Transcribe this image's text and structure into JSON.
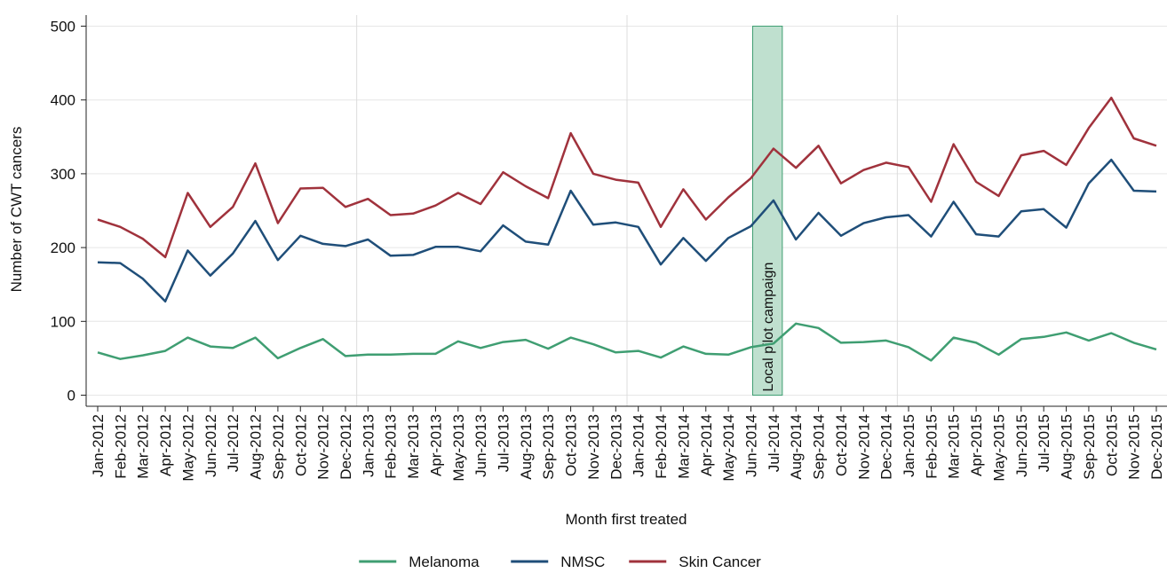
{
  "chart_data": {
    "type": "line",
    "x_label": "Month first treated",
    "y_label": "Number of CWT cancers",
    "categories": [
      "Jan-2012",
      "Feb-2012",
      "Mar-2012",
      "Apr-2012",
      "May-2012",
      "Jun-2012",
      "Jul-2012",
      "Aug-2012",
      "Sep-2012",
      "Oct-2012",
      "Nov-2012",
      "Dec-2012",
      "Jan-2013",
      "Feb-2013",
      "Mar-2013",
      "Apr-2013",
      "May-2013",
      "Jun-2013",
      "Jul-2013",
      "Aug-2013",
      "Sep-2013",
      "Oct-2013",
      "Nov-2013",
      "Dec-2013",
      "Jan-2014",
      "Feb-2014",
      "Mar-2014",
      "Apr-2014",
      "May-2014",
      "Jun-2014",
      "Jul-2014",
      "Aug-2014",
      "Sep-2014",
      "Oct-2014",
      "Nov-2014",
      "Dec-2014",
      "Jan-2015",
      "Feb-2015",
      "Mar-2015",
      "Apr-2015",
      "May-2015",
      "Jun-2015",
      "Jul-2015",
      "Aug-2015",
      "Sep-2015",
      "Oct-2015",
      "Nov-2015",
      "Dec-2015"
    ],
    "series": [
      {
        "name": "Melanoma",
        "color": "#3f9e72",
        "values": [
          58,
          49,
          54,
          60,
          78,
          66,
          64,
          78,
          50,
          64,
          76,
          53,
          55,
          55,
          56,
          56,
          73,
          64,
          72,
          75,
          63,
          78,
          69,
          58,
          60,
          51,
          66,
          56,
          55,
          65,
          70,
          97,
          91,
          71,
          72,
          74,
          65,
          47,
          78,
          71,
          55,
          76,
          79,
          85,
          74,
          84,
          71,
          62
        ]
      },
      {
        "name": "NMSC",
        "color": "#1f4e79",
        "values": [
          180,
          179,
          158,
          127,
          196,
          162,
          192,
          236,
          183,
          216,
          205,
          202,
          211,
          189,
          190,
          201,
          201,
          195,
          230,
          208,
          204,
          277,
          231,
          234,
          228,
          177,
          213,
          182,
          213,
          229,
          264,
          211,
          247,
          216,
          233,
          241,
          244,
          215,
          262,
          218,
          215,
          249,
          252,
          227,
          287,
          319,
          277,
          276
        ]
      },
      {
        "name": "Skin Cancer",
        "color": "#a0323c",
        "values": [
          238,
          228,
          212,
          187,
          274,
          228,
          255,
          314,
          233,
          280,
          281,
          255,
          266,
          244,
          246,
          257,
          274,
          259,
          302,
          283,
          267,
          355,
          300,
          292,
          288,
          228,
          279,
          238,
          268,
          294,
          334,
          308,
          338,
          287,
          305,
          315,
          309,
          262,
          340,
          289,
          270,
          325,
          331,
          312,
          362,
          403,
          348,
          338
        ]
      }
    ],
    "ylim": [
      -15,
      515
    ],
    "yticks": [
      0,
      100,
      200,
      300,
      400,
      500
    ],
    "grid": true,
    "legend": "bottom",
    "annotation": {
      "text": "Local pilot campaign",
      "from": "Jun-2014",
      "to": "Jul-2014",
      "ylim": [
        0,
        500
      ],
      "color": "#bfe0cf"
    }
  }
}
